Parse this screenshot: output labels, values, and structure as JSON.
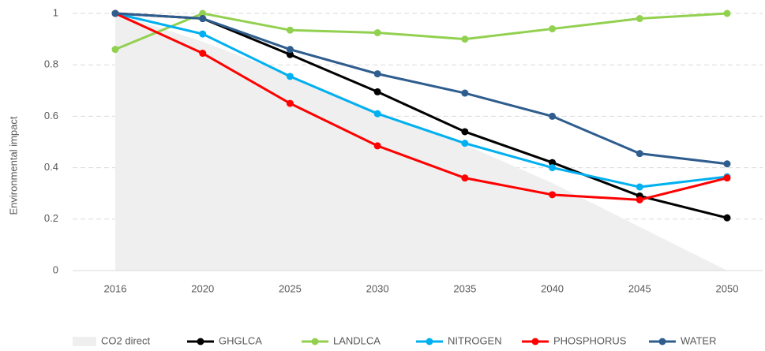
{
  "chart_data": {
    "type": "line",
    "y_label": "Environmental impact",
    "categories": [
      "2016",
      "2020",
      "2025",
      "2030",
      "2035",
      "2040",
      "2045",
      "2050"
    ],
    "ylim": [
      0,
      1
    ],
    "yticks": [
      0,
      0.2,
      0.4,
      0.6,
      0.8,
      1
    ],
    "grid": true,
    "legend": "bottom",
    "series": [
      {
        "name": "CO2 direct",
        "type": "area",
        "color": "#efefef",
        "values": [
          1,
          0.89,
          0.76,
          0.62,
          0.49,
          0.34,
          0.17,
          0
        ]
      },
      {
        "name": "GHGLCA",
        "type": "line",
        "color": "#000000",
        "values": [
          1,
          0.98,
          0.84,
          0.695,
          0.54,
          0.42,
          0.29,
          0.205
        ]
      },
      {
        "name": "LANDLCA",
        "type": "line",
        "color": "#92d050",
        "values": [
          0.86,
          1,
          0.935,
          0.925,
          0.9,
          0.94,
          0.98,
          1
        ]
      },
      {
        "name": "NITROGEN",
        "type": "line",
        "color": "#00b0f0",
        "values": [
          1,
          0.92,
          0.755,
          0.61,
          0.495,
          0.4,
          0.325,
          0.365
        ]
      },
      {
        "name": "PHOSPHORUS",
        "type": "line",
        "color": "#ff0000",
        "values": [
          1,
          0.845,
          0.65,
          0.485,
          0.36,
          0.295,
          0.275,
          0.36
        ]
      },
      {
        "name": "WATER",
        "type": "line",
        "color": "#2e5d8e",
        "values": [
          1,
          0.98,
          0.86,
          0.765,
          0.69,
          0.6,
          0.455,
          0.415
        ]
      }
    ]
  }
}
